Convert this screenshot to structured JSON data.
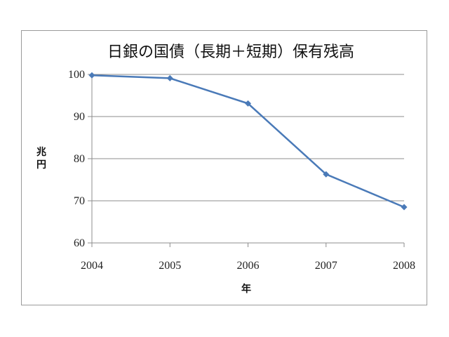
{
  "chart_data": {
    "type": "line",
    "title": "日銀の国債（長期＋短期）保有残高",
    "xlabel": "年",
    "ylabel": "兆円",
    "categories": [
      "2004",
      "2005",
      "2006",
      "2007",
      "2008"
    ],
    "series": [
      {
        "values": [
          99.8,
          99.1,
          93.1,
          76.3,
          68.5
        ]
      }
    ],
    "ylim": [
      60,
      100
    ],
    "yticks": [
      "60",
      "70",
      "80",
      "90",
      "100"
    ],
    "grid": true,
    "legend": "none",
    "colors": {
      "series": "#4a7ab8",
      "grid": "#8c8c8c"
    }
  }
}
